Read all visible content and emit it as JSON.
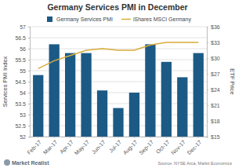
{
  "chart_data": {
    "type": "bar",
    "title": "Germany Services PMI in December",
    "categories": [
      "Feb-17",
      "Mar-17",
      "Apr-17",
      "May-17",
      "Jun-17",
      "Jul-17",
      "Aug-17",
      "Sep-17",
      "Oct-17",
      "Nov-17",
      "Dec-17"
    ],
    "series": [
      {
        "name": "Germany Services PMI",
        "type": "bar",
        "color": "#1c5a86",
        "values": [
          54.8,
          56.2,
          55.8,
          55.8,
          54.1,
          53.3,
          54.0,
          56.2,
          55.4,
          54.7,
          55.8
        ]
      },
      {
        "name": "iShares MSCI Germany",
        "type": "line",
        "color": "#d9ac3c",
        "axis": "y2",
        "values": [
          28.0,
          29.5,
          30.5,
          31.5,
          31.8,
          31.5,
          31.5,
          32.5,
          33.0,
          33.0,
          33.0
        ]
      }
    ],
    "ylabel": "Services PMI Index",
    "y2label": "ETF Price",
    "ylim": [
      52,
      57
    ],
    "yticks": [
      52,
      52.5,
      53,
      53.5,
      54,
      54.5,
      55,
      55.5,
      56,
      56.5,
      57
    ],
    "y2lim": [
      15,
      36
    ],
    "y2ticks": [
      {
        "value": 15,
        "label": "$15"
      },
      {
        "value": 18,
        "label": "$18"
      },
      {
        "value": 21,
        "label": "$21"
      },
      {
        "value": 24,
        "label": "$24"
      },
      {
        "value": 27,
        "label": "$27"
      },
      {
        "value": 30,
        "label": "$30"
      },
      {
        "value": 33,
        "label": "$33"
      },
      {
        "value": 36,
        "label": "$36"
      }
    ],
    "grid": true,
    "legend": "top",
    "source": "Source: NYSE Arca, Markit Economics",
    "logo": "Market Realist"
  }
}
